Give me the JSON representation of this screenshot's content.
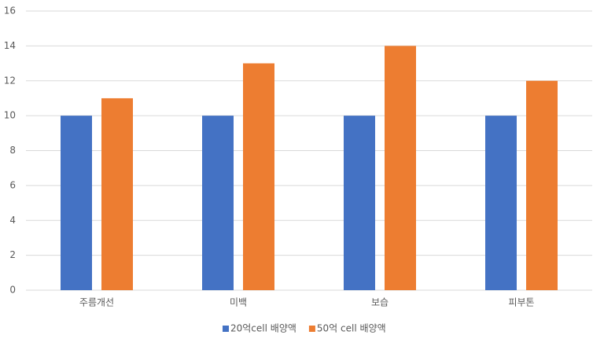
{
  "chart_data": {
    "type": "bar",
    "categories": [
      "주름개선",
      "미백",
      "보습",
      "피부톤"
    ],
    "series": [
      {
        "name": "20억cell 배양액",
        "color": "#4472c4",
        "values": [
          10,
          10,
          10,
          10
        ]
      },
      {
        "name": "50억 cell 배양액",
        "color": "#ed7d31",
        "values": [
          11,
          13,
          14,
          12
        ]
      }
    ],
    "ylim": [
      0,
      16
    ],
    "yticks": [
      0,
      2,
      4,
      6,
      8,
      10,
      12,
      14,
      16
    ],
    "grid": true,
    "legend": "bottom"
  }
}
